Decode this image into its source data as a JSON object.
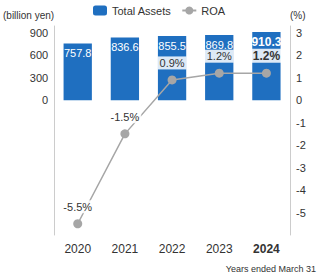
{
  "chart_data": {
    "type": "bar",
    "categories": [
      "2020",
      "2021",
      "2022",
      "2023",
      "2024"
    ],
    "series": [
      {
        "name": "Total Assets",
        "type": "bar",
        "color": "#1f6fc0",
        "values": [
          757.8,
          836.6,
          855.5,
          869.8,
          910.3
        ]
      },
      {
        "name": "ROA",
        "type": "line",
        "axis": "y2",
        "color": "#a6a6a6",
        "marker": "circle",
        "line_style": "solid",
        "values": [
          -5.5,
          -1.5,
          0.9,
          1.2,
          1.2
        ],
        "value_labels": [
          "-5.5%",
          "-1.5%",
          "0.9%",
          "1.2%",
          "1.2%"
        ]
      }
    ],
    "ylabel": "(billion yen)",
    "y2label": "(%)",
    "ylim": [
      -1800,
      990
    ],
    "yticks": [
      0,
      300,
      600,
      900
    ],
    "y2lim": [
      -6,
      3.3
    ],
    "y2ticks": [
      -5,
      -4,
      -3,
      -2,
      -1,
      0,
      1,
      2,
      3
    ],
    "data_labels": true,
    "grid": false,
    "legend": "top",
    "annotation": "Years ended March 31"
  }
}
